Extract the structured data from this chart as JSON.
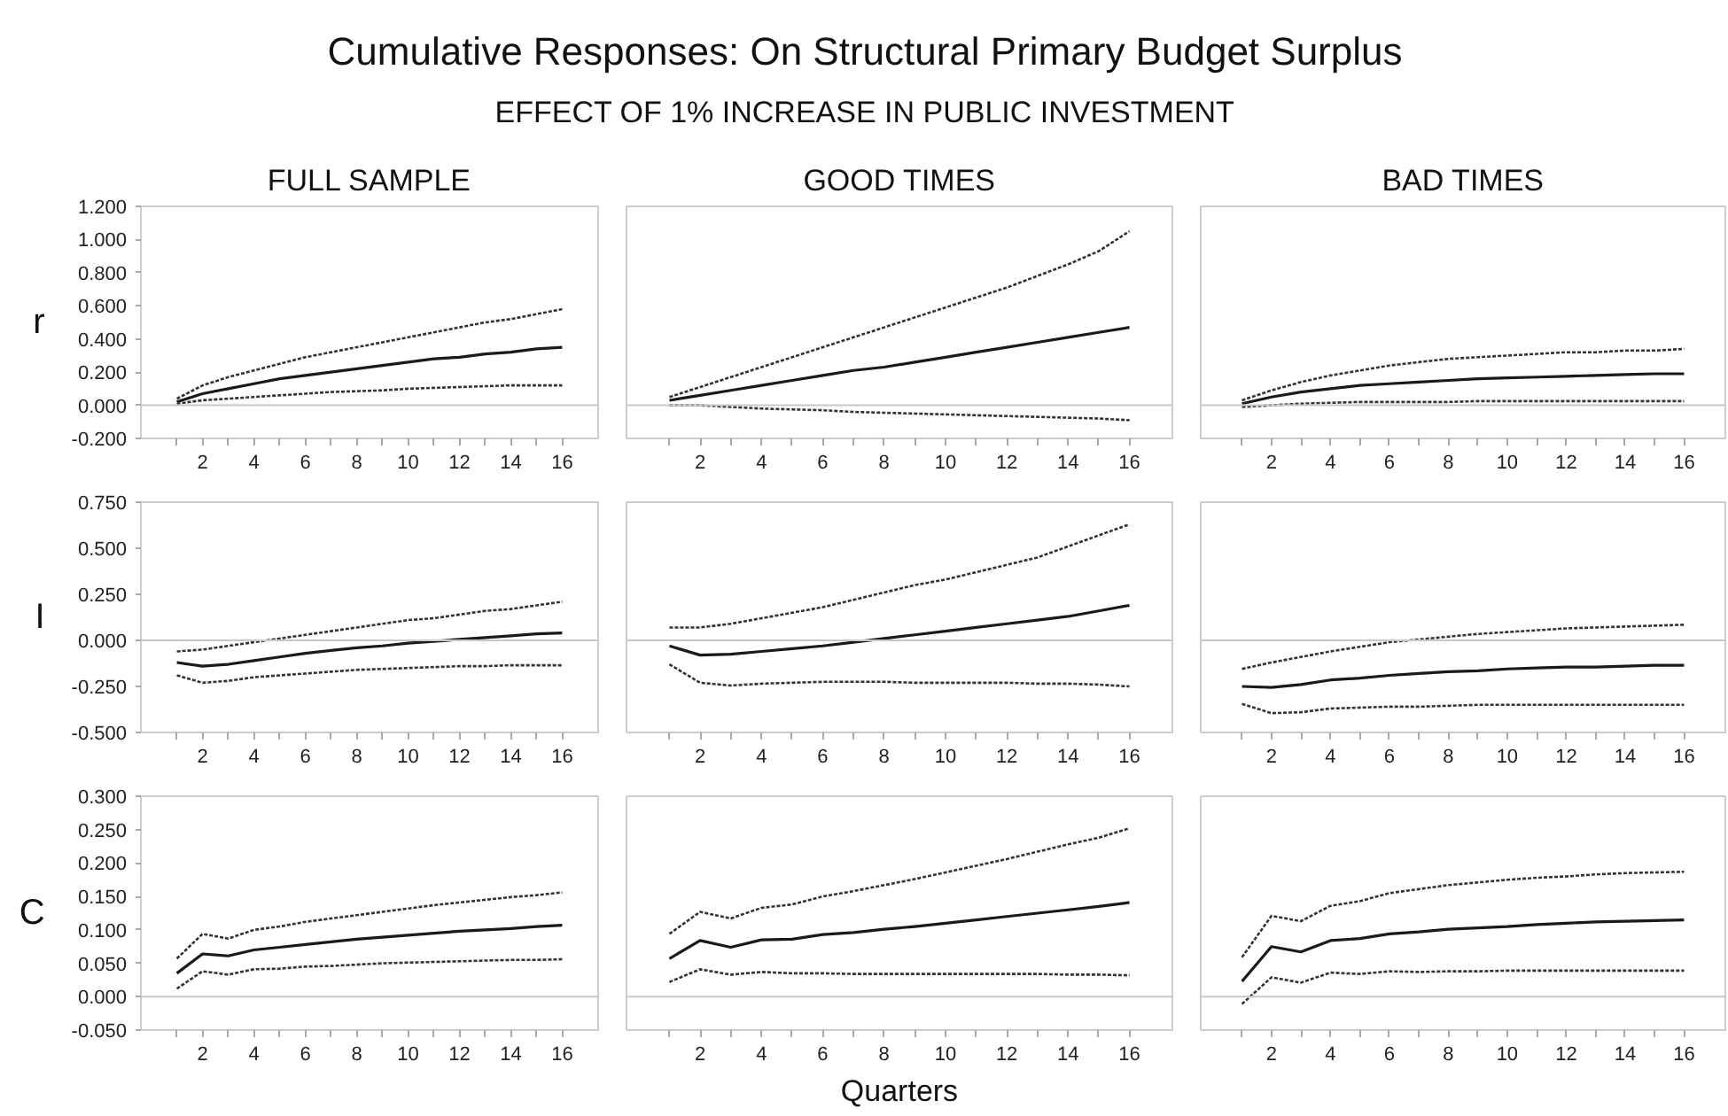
{
  "chart_data": [
    {
      "type": "other",
      "title": "Cumulative Responses: On Structural Primary Budget Surplus",
      "subtitle": "EFFECT OF 1% INCREASE IN PUBLIC INVESTMENT"
    },
    {
      "type": "line",
      "title": "FULL SAMPLE",
      "ylabel": "r",
      "x": [
        1,
        2,
        3,
        4,
        5,
        6,
        7,
        8,
        9,
        10,
        11,
        12,
        13,
        14,
        15,
        16
      ],
      "xlim": [
        -0.4,
        17.4
      ],
      "ylim": [
        -0.2,
        1.2
      ],
      "xticks": [
        {
          "value": 1,
          "label": null
        },
        2,
        {
          "value": 3,
          "label": null
        },
        4,
        {
          "value": 5,
          "label": null
        },
        6,
        {
          "value": 7,
          "label": null
        },
        8,
        {
          "value": 9,
          "label": null
        },
        10,
        {
          "value": 11,
          "label": null
        },
        12,
        {
          "value": 13,
          "label": null
        },
        14,
        {
          "value": 15,
          "label": null
        },
        16
      ],
      "yticks": [
        {
          "value": -0.2,
          "label": "-0.200"
        },
        {
          "value": 0,
          "label": "0.000"
        },
        {
          "value": 0.2,
          "label": "0.200"
        },
        {
          "value": 0.4,
          "label": "0.400"
        },
        {
          "value": 0.6,
          "label": "0.600"
        },
        {
          "value": 0.8,
          "label": "0.800"
        },
        {
          "value": 1.0,
          "label": "1.000"
        },
        {
          "value": 1.2,
          "label": "1.200"
        }
      ],
      "ref_lines": [
        {
          "axis": "y",
          "value": 0,
          "color": "#c8c8c8"
        }
      ],
      "series": [
        {
          "color": "#1a1a1a",
          "line_style": "solid",
          "values": [
            0.02,
            0.07,
            0.1,
            0.13,
            0.16,
            0.18,
            0.2,
            0.22,
            0.24,
            0.26,
            0.28,
            0.29,
            0.31,
            0.32,
            0.34,
            0.35
          ]
        },
        {
          "color": "#333333",
          "line_style": "dotted",
          "values": [
            0.04,
            0.12,
            0.17,
            0.21,
            0.25,
            0.29,
            0.32,
            0.35,
            0.38,
            0.41,
            0.44,
            0.47,
            0.5,
            0.52,
            0.55,
            0.58
          ]
        },
        {
          "color": "#333333",
          "line_style": "dotted",
          "values": [
            0.01,
            0.03,
            0.04,
            0.05,
            0.06,
            0.07,
            0.08,
            0.085,
            0.09,
            0.1,
            0.105,
            0.11,
            0.115,
            0.12,
            0.12,
            0.12
          ]
        }
      ]
    },
    {
      "type": "line",
      "title": "GOOD TIMES",
      "tick_labels": "x",
      "x": [
        1,
        2,
        3,
        4,
        5,
        6,
        7,
        8,
        9,
        10,
        11,
        12,
        13,
        14,
        15,
        16
      ],
      "xlim": [
        -0.4,
        17.4
      ],
      "ylim": [
        -0.2,
        1.2
      ],
      "xticks": [
        {
          "value": 1,
          "label": null
        },
        2,
        {
          "value": 3,
          "label": null
        },
        4,
        {
          "value": 5,
          "label": null
        },
        6,
        {
          "value": 7,
          "label": null
        },
        8,
        {
          "value": 9,
          "label": null
        },
        10,
        {
          "value": 11,
          "label": null
        },
        12,
        {
          "value": 13,
          "label": null
        },
        14,
        {
          "value": 15,
          "label": null
        },
        16
      ],
      "ref_lines": [
        {
          "axis": "y",
          "value": 0,
          "color": "#c8c8c8"
        }
      ],
      "series": [
        {
          "color": "#1a1a1a",
          "line_style": "solid",
          "values": [
            0.03,
            0.06,
            0.09,
            0.12,
            0.15,
            0.18,
            0.21,
            0.23,
            0.26,
            0.29,
            0.32,
            0.35,
            0.38,
            0.41,
            0.44,
            0.47
          ]
        },
        {
          "color": "#333333",
          "line_style": "dotted",
          "values": [
            0.05,
            0.11,
            0.17,
            0.23,
            0.29,
            0.35,
            0.41,
            0.47,
            0.53,
            0.59,
            0.65,
            0.71,
            0.78,
            0.85,
            0.93,
            1.05
          ]
        },
        {
          "color": "#333333",
          "line_style": "dotted",
          "values": [
            0.0,
            0.0,
            -0.01,
            -0.02,
            -0.025,
            -0.03,
            -0.04,
            -0.045,
            -0.05,
            -0.055,
            -0.06,
            -0.065,
            -0.07,
            -0.075,
            -0.08,
            -0.09
          ]
        }
      ]
    },
    {
      "type": "line",
      "title": "BAD TIMES",
      "tick_labels": "x",
      "x": [
        1,
        2,
        3,
        4,
        5,
        6,
        7,
        8,
        9,
        10,
        11,
        12,
        13,
        14,
        15,
        16
      ],
      "xlim": [
        -0.4,
        17.4
      ],
      "ylim": [
        -0.2,
        1.2
      ],
      "xticks": [
        {
          "value": 1,
          "label": null
        },
        2,
        {
          "value": 3,
          "label": null
        },
        4,
        {
          "value": 5,
          "label": null
        },
        6,
        {
          "value": 7,
          "label": null
        },
        8,
        {
          "value": 9,
          "label": null
        },
        10,
        {
          "value": 11,
          "label": null
        },
        12,
        {
          "value": 13,
          "label": null
        },
        14,
        {
          "value": 15,
          "label": null
        },
        16
      ],
      "ref_lines": [
        {
          "axis": "y",
          "value": 0,
          "color": "#c8c8c8"
        }
      ],
      "series": [
        {
          "color": "#1a1a1a",
          "line_style": "solid",
          "values": [
            0.01,
            0.05,
            0.08,
            0.1,
            0.12,
            0.13,
            0.14,
            0.15,
            0.16,
            0.165,
            0.17,
            0.175,
            0.18,
            0.185,
            0.19,
            0.19
          ]
        },
        {
          "color": "#333333",
          "line_style": "dotted",
          "values": [
            0.03,
            0.09,
            0.14,
            0.18,
            0.21,
            0.24,
            0.26,
            0.28,
            0.29,
            0.3,
            0.31,
            0.32,
            0.32,
            0.33,
            0.33,
            0.34
          ]
        },
        {
          "color": "#333333",
          "line_style": "dotted",
          "values": [
            -0.01,
            0.0,
            0.01,
            0.015,
            0.02,
            0.02,
            0.02,
            0.02,
            0.025,
            0.025,
            0.025,
            0.025,
            0.025,
            0.025,
            0.025,
            0.025
          ]
        }
      ]
    },
    {
      "type": "line",
      "ylabel": "I",
      "x": [
        1,
        2,
        3,
        4,
        5,
        6,
        7,
        8,
        9,
        10,
        11,
        12,
        13,
        14,
        15,
        16
      ],
      "xlim": [
        -0.4,
        17.4
      ],
      "ylim": [
        -0.5,
        0.75
      ],
      "xticks": [
        {
          "value": 1,
          "label": null
        },
        2,
        {
          "value": 3,
          "label": null
        },
        4,
        {
          "value": 5,
          "label": null
        },
        6,
        {
          "value": 7,
          "label": null
        },
        8,
        {
          "value": 9,
          "label": null
        },
        10,
        {
          "value": 11,
          "label": null
        },
        12,
        {
          "value": 13,
          "label": null
        },
        14,
        {
          "value": 15,
          "label": null
        },
        16
      ],
      "yticks": [
        {
          "value": -0.5,
          "label": "-0.500"
        },
        {
          "value": -0.25,
          "label": "-0.250"
        },
        {
          "value": 0,
          "label": "0.000"
        },
        {
          "value": 0.25,
          "label": "0.250"
        },
        {
          "value": 0.5,
          "label": "0.500"
        },
        {
          "value": 0.75,
          "label": "0.750"
        }
      ],
      "ref_lines": [
        {
          "axis": "y",
          "value": 0,
          "color": "#c8c8c8"
        }
      ],
      "series": [
        {
          "color": "#1a1a1a",
          "line_style": "solid",
          "values": [
            -0.12,
            -0.14,
            -0.13,
            -0.11,
            -0.09,
            -0.07,
            -0.055,
            -0.04,
            -0.03,
            -0.015,
            -0.005,
            0.005,
            0.015,
            0.025,
            0.035,
            0.04
          ]
        },
        {
          "color": "#333333",
          "line_style": "dotted",
          "values": [
            -0.06,
            -0.05,
            -0.03,
            -0.01,
            0.01,
            0.03,
            0.05,
            0.07,
            0.09,
            0.11,
            0.12,
            0.14,
            0.16,
            0.17,
            0.19,
            0.21
          ]
        },
        {
          "color": "#333333",
          "line_style": "dotted",
          "values": [
            -0.19,
            -0.23,
            -0.22,
            -0.2,
            -0.19,
            -0.18,
            -0.17,
            -0.16,
            -0.155,
            -0.15,
            -0.145,
            -0.14,
            -0.14,
            -0.135,
            -0.135,
            -0.135
          ]
        }
      ]
    },
    {
      "type": "line",
      "tick_labels": "x",
      "x": [
        1,
        2,
        3,
        4,
        5,
        6,
        7,
        8,
        9,
        10,
        11,
        12,
        13,
        14,
        15,
        16
      ],
      "xlim": [
        -0.4,
        17.4
      ],
      "ylim": [
        -0.5,
        0.75
      ],
      "xticks": [
        {
          "value": 1,
          "label": null
        },
        2,
        {
          "value": 3,
          "label": null
        },
        4,
        {
          "value": 5,
          "label": null
        },
        6,
        {
          "value": 7,
          "label": null
        },
        8,
        {
          "value": 9,
          "label": null
        },
        10,
        {
          "value": 11,
          "label": null
        },
        12,
        {
          "value": 13,
          "label": null
        },
        14,
        {
          "value": 15,
          "label": null
        },
        16
      ],
      "ref_lines": [
        {
          "axis": "y",
          "value": 0,
          "color": "#c8c8c8"
        }
      ],
      "series": [
        {
          "color": "#1a1a1a",
          "line_style": "solid",
          "values": [
            -0.03,
            -0.08,
            -0.075,
            -0.06,
            -0.045,
            -0.03,
            -0.01,
            0.01,
            0.03,
            0.05,
            0.07,
            0.09,
            0.11,
            0.13,
            0.16,
            0.19
          ]
        },
        {
          "color": "#333333",
          "line_style": "dotted",
          "values": [
            0.07,
            0.07,
            0.09,
            0.12,
            0.15,
            0.18,
            0.22,
            0.26,
            0.3,
            0.33,
            0.37,
            0.41,
            0.45,
            0.51,
            0.57,
            0.63
          ]
        },
        {
          "color": "#333333",
          "line_style": "dotted",
          "values": [
            -0.13,
            -0.23,
            -0.245,
            -0.235,
            -0.23,
            -0.225,
            -0.225,
            -0.225,
            -0.23,
            -0.23,
            -0.23,
            -0.23,
            -0.235,
            -0.235,
            -0.24,
            -0.25
          ]
        }
      ]
    },
    {
      "type": "line",
      "tick_labels": "x",
      "x": [
        1,
        2,
        3,
        4,
        5,
        6,
        7,
        8,
        9,
        10,
        11,
        12,
        13,
        14,
        15,
        16
      ],
      "xlim": [
        -0.4,
        17.4
      ],
      "ylim": [
        -0.5,
        0.75
      ],
      "xticks": [
        {
          "value": 1,
          "label": null
        },
        2,
        {
          "value": 3,
          "label": null
        },
        4,
        {
          "value": 5,
          "label": null
        },
        6,
        {
          "value": 7,
          "label": null
        },
        8,
        {
          "value": 9,
          "label": null
        },
        10,
        {
          "value": 11,
          "label": null
        },
        12,
        {
          "value": 13,
          "label": null
        },
        14,
        {
          "value": 15,
          "label": null
        },
        16
      ],
      "ref_lines": [
        {
          "axis": "y",
          "value": 0,
          "color": "#c8c8c8"
        }
      ],
      "series": [
        {
          "color": "#1a1a1a",
          "line_style": "solid",
          "values": [
            -0.25,
            -0.255,
            -0.24,
            -0.215,
            -0.205,
            -0.19,
            -0.18,
            -0.17,
            -0.165,
            -0.155,
            -0.15,
            -0.145,
            -0.145,
            -0.14,
            -0.135,
            -0.135
          ]
        },
        {
          "color": "#333333",
          "line_style": "dotted",
          "values": [
            -0.155,
            -0.12,
            -0.09,
            -0.06,
            -0.035,
            -0.01,
            0.005,
            0.02,
            0.035,
            0.045,
            0.055,
            0.065,
            0.07,
            0.075,
            0.08,
            0.085
          ]
        },
        {
          "color": "#333333",
          "line_style": "dotted",
          "values": [
            -0.345,
            -0.395,
            -0.39,
            -0.37,
            -0.365,
            -0.36,
            -0.36,
            -0.355,
            -0.35,
            -0.35,
            -0.35,
            -0.35,
            -0.35,
            -0.35,
            -0.35,
            -0.35
          ]
        }
      ]
    },
    {
      "type": "line",
      "ylabel": "C",
      "x": [
        1,
        2,
        3,
        4,
        5,
        6,
        7,
        8,
        9,
        10,
        11,
        12,
        13,
        14,
        15,
        16
      ],
      "xlim": [
        -0.4,
        17.4
      ],
      "ylim": [
        -0.05,
        0.3
      ],
      "xticks": [
        {
          "value": 1,
          "label": null
        },
        2,
        {
          "value": 3,
          "label": null
        },
        4,
        {
          "value": 5,
          "label": null
        },
        6,
        {
          "value": 7,
          "label": null
        },
        8,
        {
          "value": 9,
          "label": null
        },
        10,
        {
          "value": 11,
          "label": null
        },
        12,
        {
          "value": 13,
          "label": null
        },
        14,
        {
          "value": 15,
          "label": null
        },
        16
      ],
      "yticks": [
        {
          "value": -0.05,
          "label": "-0.050"
        },
        {
          "value": 0,
          "label": "0.000"
        },
        {
          "value": 0.05,
          "label": "0.050"
        },
        {
          "value": 0.1,
          "label": "0.100"
        },
        {
          "value": 0.15,
          "label": "0.150"
        },
        {
          "value": 0.2,
          "label": "0.200"
        },
        {
          "value": 0.25,
          "label": "0.250"
        },
        {
          "value": 0.3,
          "label": "0.300"
        }
      ],
      "ref_lines": [
        {
          "axis": "y",
          "value": 0,
          "color": "#c8c8c8"
        }
      ],
      "series": [
        {
          "color": "#1a1a1a",
          "line_style": "solid",
          "values": [
            0.035,
            0.064,
            0.061,
            0.07,
            0.074,
            0.078,
            0.082,
            0.086,
            0.089,
            0.092,
            0.095,
            0.098,
            0.1,
            0.102,
            0.105,
            0.107
          ]
        },
        {
          "color": "#333333",
          "line_style": "dotted",
          "values": [
            0.057,
            0.094,
            0.087,
            0.1,
            0.105,
            0.112,
            0.117,
            0.122,
            0.127,
            0.132,
            0.137,
            0.141,
            0.145,
            0.149,
            0.152,
            0.156
          ]
        },
        {
          "color": "#333333",
          "line_style": "dotted",
          "values": [
            0.012,
            0.038,
            0.033,
            0.041,
            0.042,
            0.045,
            0.046,
            0.048,
            0.05,
            0.051,
            0.052,
            0.053,
            0.054,
            0.055,
            0.055,
            0.056
          ]
        }
      ]
    },
    {
      "type": "line",
      "xlabel": "Quarters",
      "tick_labels": "x",
      "x": [
        1,
        2,
        3,
        4,
        5,
        6,
        7,
        8,
        9,
        10,
        11,
        12,
        13,
        14,
        15,
        16
      ],
      "xlim": [
        -0.4,
        17.4
      ],
      "ylim": [
        -0.05,
        0.3
      ],
      "xticks": [
        {
          "value": 1,
          "label": null
        },
        2,
        {
          "value": 3,
          "label": null
        },
        4,
        {
          "value": 5,
          "label": null
        },
        6,
        {
          "value": 7,
          "label": null
        },
        8,
        {
          "value": 9,
          "label": null
        },
        10,
        {
          "value": 11,
          "label": null
        },
        12,
        {
          "value": 13,
          "label": null
        },
        14,
        {
          "value": 15,
          "label": null
        },
        16
      ],
      "ref_lines": [
        {
          "axis": "y",
          "value": 0,
          "color": "#c8c8c8"
        }
      ],
      "series": [
        {
          "color": "#1a1a1a",
          "line_style": "solid",
          "values": [
            0.057,
            0.084,
            0.074,
            0.085,
            0.086,
            0.093,
            0.096,
            0.101,
            0.105,
            0.11,
            0.115,
            0.12,
            0.125,
            0.13,
            0.135,
            0.141
          ]
        },
        {
          "color": "#333333",
          "line_style": "dotted",
          "values": [
            0.094,
            0.127,
            0.117,
            0.133,
            0.138,
            0.15,
            0.158,
            0.167,
            0.176,
            0.186,
            0.196,
            0.206,
            0.217,
            0.228,
            0.238,
            0.252
          ]
        },
        {
          "color": "#333333",
          "line_style": "dotted",
          "values": [
            0.022,
            0.041,
            0.033,
            0.037,
            0.035,
            0.035,
            0.034,
            0.034,
            0.034,
            0.034,
            0.034,
            0.034,
            0.034,
            0.033,
            0.033,
            0.032
          ]
        }
      ]
    },
    {
      "type": "line",
      "tick_labels": "x",
      "x": [
        1,
        2,
        3,
        4,
        5,
        6,
        7,
        8,
        9,
        10,
        11,
        12,
        13,
        14,
        15,
        16
      ],
      "xlim": [
        -0.4,
        17.4
      ],
      "ylim": [
        -0.05,
        0.3
      ],
      "xticks": [
        {
          "value": 1,
          "label": null
        },
        2,
        {
          "value": 3,
          "label": null
        },
        4,
        {
          "value": 5,
          "label": null
        },
        6,
        {
          "value": 7,
          "label": null
        },
        8,
        {
          "value": 9,
          "label": null
        },
        10,
        {
          "value": 11,
          "label": null
        },
        12,
        {
          "value": 13,
          "label": null
        },
        14,
        {
          "value": 15,
          "label": null
        },
        16
      ],
      "ref_lines": [
        {
          "axis": "y",
          "value": 0,
          "color": "#c8c8c8"
        }
      ],
      "series": [
        {
          "color": "#1a1a1a",
          "line_style": "solid",
          "values": [
            0.023,
            0.075,
            0.067,
            0.084,
            0.087,
            0.094,
            0.097,
            0.101,
            0.103,
            0.105,
            0.108,
            0.11,
            0.112,
            0.113,
            0.114,
            0.115
          ]
        },
        {
          "color": "#333333",
          "line_style": "dotted",
          "values": [
            0.059,
            0.121,
            0.113,
            0.136,
            0.143,
            0.155,
            0.161,
            0.167,
            0.171,
            0.175,
            0.178,
            0.18,
            0.183,
            0.185,
            0.186,
            0.187
          ]
        },
        {
          "color": "#333333",
          "line_style": "dotted",
          "values": [
            -0.011,
            0.029,
            0.021,
            0.036,
            0.034,
            0.038,
            0.037,
            0.038,
            0.038,
            0.039,
            0.039,
            0.039,
            0.039,
            0.039,
            0.039,
            0.039
          ]
        }
      ]
    }
  ]
}
